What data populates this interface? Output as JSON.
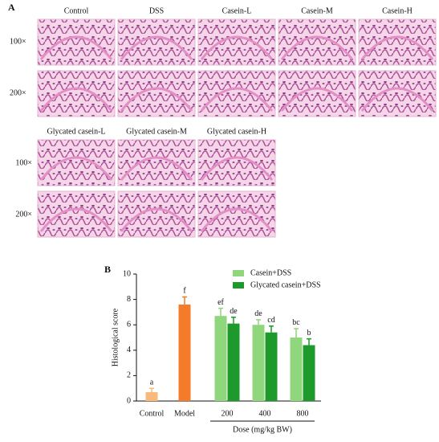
{
  "panel_a": {
    "label": "A",
    "columns": [
      "Control",
      "DSS",
      "Casein-L",
      "Casein-M",
      "Casein-H"
    ],
    "columns_lower": [
      "Glycated casein-L",
      "Glycated casein-M",
      "Glycated casein-H"
    ],
    "rows": [
      "100×",
      "200×"
    ]
  },
  "chart_data": {
    "type": "bar",
    "panel_label": "B",
    "categories": [
      "Control",
      "Model",
      "200",
      "400",
      "800"
    ],
    "x_label": "Dose (mg/kg BW)",
    "y_label": "Histological  score",
    "ylim": [
      0,
      10
    ],
    "yticks": [
      0,
      2,
      4,
      6,
      8,
      10
    ],
    "series": [
      {
        "colors": [
          "#f9b97a",
          "#f47b2a",
          null,
          null,
          null
        ],
        "values": [
          0.7,
          7.6,
          null,
          null,
          null
        ],
        "errors": [
          0.3,
          0.6,
          null,
          null,
          null
        ],
        "labels": [
          "a",
          "f",
          null,
          null,
          null
        ]
      },
      {
        "name": "Casein+DSS",
        "color": "#8fd67c",
        "values": [
          null,
          null,
          6.7,
          6.0,
          5.0
        ],
        "errors": [
          null,
          null,
          0.6,
          0.4,
          0.7
        ],
        "labels": [
          null,
          null,
          "ef",
          "de",
          "bc"
        ]
      },
      {
        "name": "Glycated casein+DSS",
        "color": "#1e9a2c",
        "values": [
          null,
          null,
          6.1,
          5.4,
          4.4
        ],
        "errors": [
          null,
          null,
          0.5,
          0.5,
          0.5
        ],
        "labels": [
          null,
          null,
          "de",
          "cd",
          "b"
        ]
      }
    ]
  }
}
